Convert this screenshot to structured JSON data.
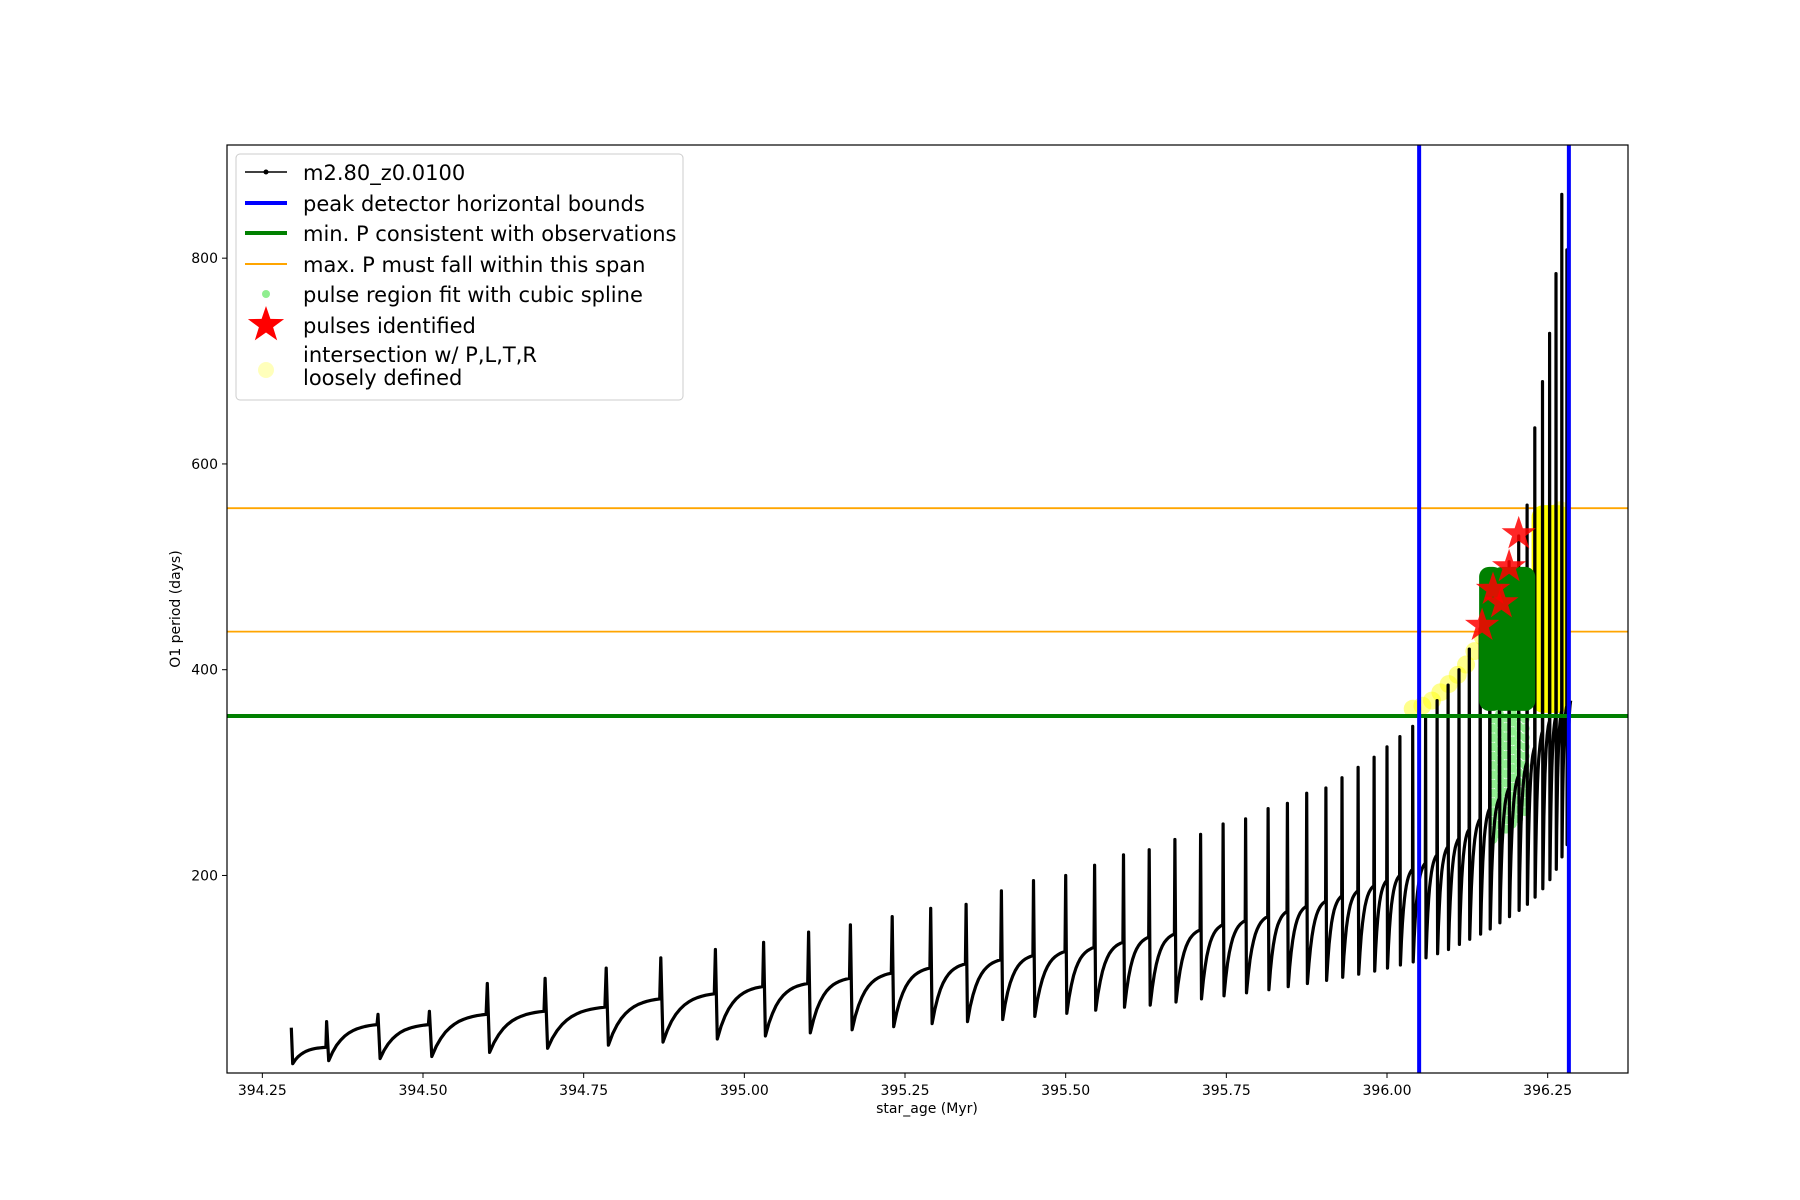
{
  "chart_data": {
    "type": "line",
    "xlabel": "star_age (Myr)",
    "ylabel": "O1 period (days)",
    "xlim": [
      394.195,
      396.375
    ],
    "ylim": [
      8,
      910
    ],
    "xticks": [
      394.25,
      394.5,
      394.75,
      395.0,
      395.25,
      395.5,
      395.75,
      396.0,
      396.25
    ],
    "xtick_labels": [
      "394.25",
      "394.50",
      "394.75",
      "395.00",
      "395.25",
      "395.50",
      "395.75",
      "396.00",
      "396.25"
    ],
    "yticks": [
      200,
      400,
      600,
      800
    ],
    "ytick_labels": [
      "200",
      "400",
      "600",
      "800"
    ],
    "grid": false,
    "legend_position": "upper-left",
    "vertical_lines": {
      "x": [
        396.05,
        396.283
      ],
      "color": "#0000ff",
      "label": "peak detector horizontal bounds"
    },
    "min_line": {
      "y": 355,
      "color": "#008000",
      "label": "min. P consistent with observations"
    },
    "span_lines": {
      "y": [
        437,
        557
      ],
      "color": "#ffa500",
      "label": "max. P must fall within this span"
    },
    "series": [
      {
        "name": "m2.80_z0.0100",
        "color": "#000000",
        "pulses": [
          {
            "start": 394.295,
            "floor": 17,
            "top": 33,
            "spike": 52
          },
          {
            "start": 394.35,
            "floor": 20,
            "top": 55,
            "spike": 58
          },
          {
            "start": 394.43,
            "floor": 22,
            "top": 55,
            "spike": 65
          },
          {
            "start": 394.51,
            "floor": 24,
            "top": 65,
            "spike": 68
          },
          {
            "start": 394.6,
            "floor": 28,
            "top": 68,
            "spike": 95
          },
          {
            "start": 394.69,
            "floor": 32,
            "top": 72,
            "spike": 100
          },
          {
            "start": 394.785,
            "floor": 35,
            "top": 80,
            "spike": 110
          },
          {
            "start": 394.87,
            "floor": 38,
            "top": 85,
            "spike": 120
          },
          {
            "start": 394.955,
            "floor": 41,
            "top": 92,
            "spike": 128
          },
          {
            "start": 395.03,
            "floor": 44,
            "top": 95,
            "spike": 135
          },
          {
            "start": 395.1,
            "floor": 47,
            "top": 100,
            "spike": 145
          },
          {
            "start": 395.165,
            "floor": 50,
            "top": 105,
            "spike": 152
          },
          {
            "start": 395.23,
            "floor": 53,
            "top": 110,
            "spike": 160
          },
          {
            "start": 395.29,
            "floor": 56,
            "top": 114,
            "spike": 168
          },
          {
            "start": 395.345,
            "floor": 58,
            "top": 118,
            "spike": 172
          },
          {
            "start": 395.4,
            "floor": 60,
            "top": 122,
            "spike": 185
          },
          {
            "start": 395.45,
            "floor": 63,
            "top": 126,
            "spike": 195
          },
          {
            "start": 395.5,
            "floor": 66,
            "top": 130,
            "spike": 200
          },
          {
            "start": 395.545,
            "floor": 69,
            "top": 135,
            "spike": 210
          },
          {
            "start": 395.59,
            "floor": 72,
            "top": 140,
            "spike": 220
          },
          {
            "start": 395.63,
            "floor": 74,
            "top": 143,
            "spike": 225
          },
          {
            "start": 395.67,
            "floor": 77,
            "top": 147,
            "spike": 235
          },
          {
            "start": 395.71,
            "floor": 80,
            "top": 152,
            "spike": 240
          },
          {
            "start": 395.745,
            "floor": 83,
            "top": 156,
            "spike": 250
          },
          {
            "start": 395.78,
            "floor": 86,
            "top": 160,
            "spike": 255
          },
          {
            "start": 395.815,
            "floor": 89,
            "top": 165,
            "spike": 265
          },
          {
            "start": 395.845,
            "floor": 92,
            "top": 170,
            "spike": 270
          },
          {
            "start": 395.875,
            "floor": 95,
            "top": 175,
            "spike": 280
          },
          {
            "start": 395.905,
            "floor": 98,
            "top": 180,
            "spike": 285
          },
          {
            "start": 395.93,
            "floor": 101,
            "top": 185,
            "spike": 295
          },
          {
            "start": 395.955,
            "floor": 104,
            "top": 190,
            "spike": 305
          },
          {
            "start": 395.98,
            "floor": 107,
            "top": 195,
            "spike": 315
          },
          {
            "start": 396.0,
            "floor": 110,
            "top": 200,
            "spike": 325
          },
          {
            "start": 396.02,
            "floor": 113,
            "top": 206,
            "spike": 335
          },
          {
            "start": 396.04,
            "floor": 116,
            "top": 212,
            "spike": 345
          },
          {
            "start": 396.06,
            "floor": 120,
            "top": 220,
            "spike": 355
          },
          {
            "start": 396.078,
            "floor": 124,
            "top": 228,
            "spike": 370
          },
          {
            "start": 396.095,
            "floor": 128,
            "top": 236,
            "spike": 385
          },
          {
            "start": 396.112,
            "floor": 133,
            "top": 245,
            "spike": 400
          },
          {
            "start": 396.128,
            "floor": 138,
            "top": 255,
            "spike": 420
          },
          {
            "start": 396.145,
            "floor": 143,
            "top": 265,
            "spike": 440
          },
          {
            "start": 396.16,
            "floor": 148,
            "top": 275,
            "spike": 465
          },
          {
            "start": 396.175,
            "floor": 154,
            "top": 285,
            "spike": 480
          },
          {
            "start": 396.19,
            "floor": 160,
            "top": 297,
            "spike": 505
          },
          {
            "start": 396.205,
            "floor": 166,
            "top": 310,
            "spike": 530
          },
          {
            "start": 396.218,
            "floor": 172,
            "top": 325,
            "spike": 560
          },
          {
            "start": 396.23,
            "floor": 179,
            "top": 340,
            "spike": 635
          },
          {
            "start": 396.242,
            "floor": 187,
            "top": 350,
            "spike": 680
          },
          {
            "start": 396.253,
            "floor": 196,
            "top": 355,
            "spike": 727
          },
          {
            "start": 396.263,
            "floor": 206,
            "top": 360,
            "spike": 785
          },
          {
            "start": 396.272,
            "floor": 218,
            "top": 365,
            "spike": 862
          },
          {
            "start": 396.28,
            "floor": 230,
            "top": 370,
            "spike": 808
          }
        ]
      }
    ],
    "spline_regions": {
      "label": "pulse region fit with cubic spline",
      "color": "#90ee90",
      "x": [
        396.165,
        396.175,
        396.185,
        396.195,
        396.205,
        396.215
      ],
      "ylow": [
        235,
        240,
        245,
        250,
        255,
        262
      ],
      "yhigh": [
        360,
        360,
        360,
        360,
        360,
        360
      ]
    },
    "green_block": {
      "x": [
        396.162,
        396.182,
        396.198,
        396.212
      ],
      "ylow": 360,
      "yhigh": 500
    },
    "pulses_identified": {
      "label": "pulses identified",
      "color": "#ff0000",
      "points": [
        {
          "x": 396.148,
          "y": 443
        },
        {
          "x": 396.165,
          "y": 478
        },
        {
          "x": 396.178,
          "y": 465
        },
        {
          "x": 396.19,
          "y": 500
        },
        {
          "x": 396.205,
          "y": 532
        }
      ]
    },
    "loosely_defined": {
      "label": "intersection w/ P,L,T,R\nloosely defined",
      "color": "#ffff00",
      "points": [
        {
          "x": 396.04,
          "y": 362
        },
        {
          "x": 396.055,
          "y": 365
        },
        {
          "x": 396.07,
          "y": 370
        },
        {
          "x": 396.083,
          "y": 378
        },
        {
          "x": 396.096,
          "y": 386
        },
        {
          "x": 396.11,
          "y": 395
        },
        {
          "x": 396.123,
          "y": 405
        },
        {
          "x": 396.136,
          "y": 418
        },
        {
          "x": 396.149,
          "y": 432
        },
        {
          "x": 396.22,
          "y": 440
        },
        {
          "x": 396.23,
          "y": 470
        },
        {
          "x": 396.24,
          "y": 500
        },
        {
          "x": 396.25,
          "y": 530
        },
        {
          "x": 396.26,
          "y": 550
        },
        {
          "x": 396.27,
          "y": 555
        }
      ],
      "bar": {
        "x": [
          396.225,
          396.285
        ],
        "ylow": 358,
        "yhigh": 560
      }
    },
    "legend": {
      "labels": [
        "m2.80_z0.0100",
        "peak detector horizontal bounds",
        "min. P consistent with observations",
        "max. P must fall within this span",
        "pulse region fit with cubic spline",
        "pulses identified",
        "intersection w/ P,L,T,R",
        "loosely defined"
      ]
    }
  }
}
